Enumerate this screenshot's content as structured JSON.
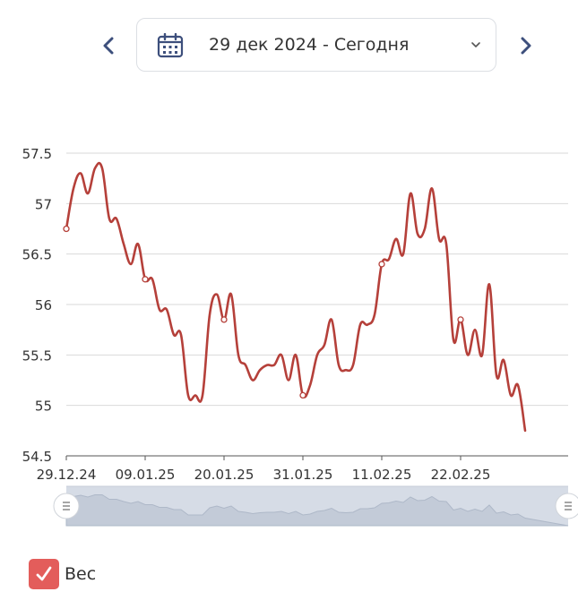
{
  "header": {
    "date_range": "29 дек 2024 - Сегодня",
    "prev_icon": "chevron-left-icon",
    "next_icon": "chevron-right-icon",
    "calendar_icon": "calendar-icon",
    "dropdown_icon": "chevron-down-icon"
  },
  "colors": {
    "series": "#b5403a",
    "accent": "#3d4f7c",
    "checkbox": "#e35d5b",
    "navigator": "#d6dce6"
  },
  "legend": {
    "label": "Вес",
    "checked": true
  },
  "chart_data": {
    "type": "line",
    "title": "",
    "xlabel": "",
    "ylabel": "",
    "ylim": [
      54.5,
      57.5
    ],
    "xlim": [
      "2024-12-29",
      "2025-03-09"
    ],
    "yticks": [
      "57.5",
      "57",
      "56.5",
      "56",
      "55.5",
      "55",
      "54.5"
    ],
    "xticks": [
      "29.12.24",
      "09.01.25",
      "20.01.25",
      "31.01.25",
      "11.02.25",
      "22.02.25"
    ],
    "grid": true,
    "series": [
      {
        "name": "Вес",
        "points": [
          [
            "2024-12-29",
            56.75
          ],
          [
            "2024-12-30",
            57.15
          ],
          [
            "2024-12-31",
            57.3
          ],
          [
            "2025-01-01",
            57.1
          ],
          [
            "2025-01-02",
            57.35
          ],
          [
            "2025-01-03",
            57.35
          ],
          [
            "2025-01-04",
            56.85
          ],
          [
            "2025-01-05",
            56.85
          ],
          [
            "2025-01-06",
            56.6
          ],
          [
            "2025-01-07",
            56.4
          ],
          [
            "2025-01-08",
            56.6
          ],
          [
            "2025-01-09",
            56.25
          ],
          [
            "2025-01-10",
            56.25
          ],
          [
            "2025-01-11",
            55.95
          ],
          [
            "2025-01-12",
            55.95
          ],
          [
            "2025-01-13",
            55.7
          ],
          [
            "2025-01-14",
            55.7
          ],
          [
            "2025-01-15",
            55.1
          ],
          [
            "2025-01-16",
            55.1
          ],
          [
            "2025-01-17",
            55.1
          ],
          [
            "2025-01-18",
            55.9
          ],
          [
            "2025-01-19",
            56.1
          ],
          [
            "2025-01-20",
            55.85
          ],
          [
            "2025-01-21",
            56.1
          ],
          [
            "2025-01-22",
            55.5
          ],
          [
            "2025-01-23",
            55.4
          ],
          [
            "2025-01-24",
            55.25
          ],
          [
            "2025-01-25",
            55.35
          ],
          [
            "2025-01-26",
            55.4
          ],
          [
            "2025-01-27",
            55.4
          ],
          [
            "2025-01-28",
            55.5
          ],
          [
            "2025-01-29",
            55.25
          ],
          [
            "2025-01-30",
            55.5
          ],
          [
            "2025-01-31",
            55.1
          ],
          [
            "2025-02-01",
            55.2
          ],
          [
            "2025-02-02",
            55.5
          ],
          [
            "2025-02-03",
            55.6
          ],
          [
            "2025-02-04",
            55.85
          ],
          [
            "2025-02-05",
            55.4
          ],
          [
            "2025-02-06",
            55.35
          ],
          [
            "2025-02-07",
            55.4
          ],
          [
            "2025-02-08",
            55.8
          ],
          [
            "2025-02-09",
            55.8
          ],
          [
            "2025-02-10",
            55.9
          ],
          [
            "2025-02-11",
            56.4
          ],
          [
            "2025-02-12",
            56.45
          ],
          [
            "2025-02-13",
            56.65
          ],
          [
            "2025-02-14",
            56.5
          ],
          [
            "2025-02-15",
            57.1
          ],
          [
            "2025-02-16",
            56.7
          ],
          [
            "2025-02-17",
            56.75
          ],
          [
            "2025-02-18",
            57.15
          ],
          [
            "2025-02-19",
            56.65
          ],
          [
            "2025-02-20",
            56.6
          ],
          [
            "2025-02-21",
            55.65
          ],
          [
            "2025-02-22",
            55.85
          ],
          [
            "2025-02-23",
            55.5
          ],
          [
            "2025-02-24",
            55.75
          ],
          [
            "2025-02-25",
            55.5
          ],
          [
            "2025-02-26",
            56.2
          ],
          [
            "2025-02-27",
            55.3
          ],
          [
            "2025-02-28",
            55.45
          ],
          [
            "2025-03-01",
            55.1
          ],
          [
            "2025-03-02",
            55.2
          ],
          [
            "2025-03-03",
            54.75
          ]
        ],
        "markers": [
          "2024-12-29",
          "2025-01-09",
          "2025-01-20",
          "2025-01-31",
          "2025-02-11",
          "2025-02-22"
        ]
      }
    ],
    "navigator": true
  }
}
